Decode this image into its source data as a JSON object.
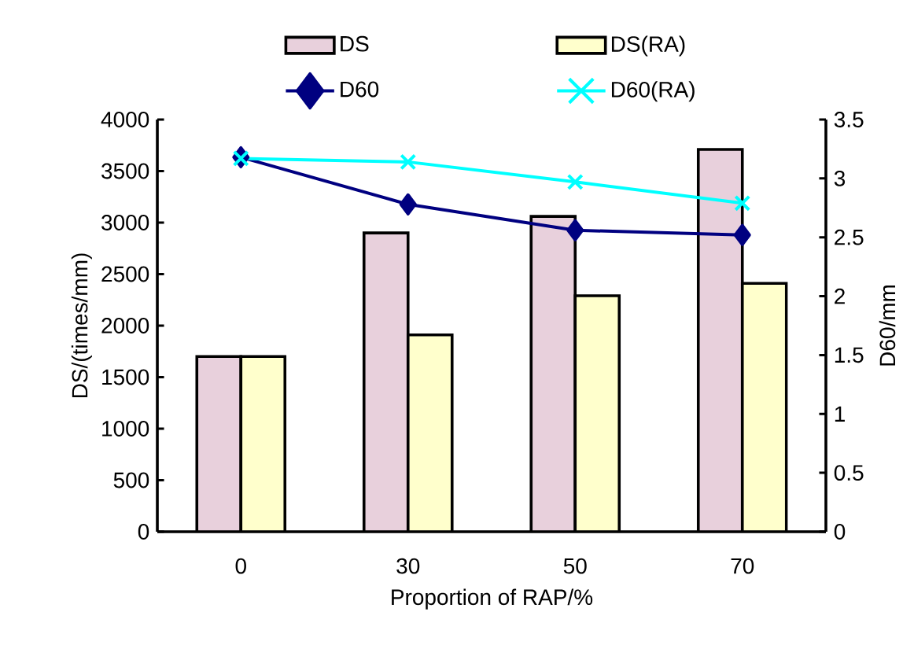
{
  "chart_data": {
    "type": "bar",
    "categories": [
      "0",
      "30",
      "50",
      "70"
    ],
    "xlabel": "Proportion of RAP/%",
    "ylabel": "DS/(times/mm)",
    "y2label": "D60/mm",
    "series": [
      {
        "name": "DS",
        "color": "#e8d0dc",
        "values": [
          1700,
          2900,
          3060,
          3710
        ]
      },
      {
        "name": "DS(RA)",
        "color": "#ffffcc",
        "values": [
          1700,
          1910,
          2290,
          2410
        ]
      },
      {
        "name": "D60",
        "type": "line",
        "axis": "y2",
        "marker": "diamond",
        "color": "#000080",
        "values": [
          3.18,
          2.78,
          2.56,
          2.52
        ]
      },
      {
        "name": "D60(RA)",
        "type": "line",
        "axis": "y2",
        "marker": "cross",
        "color": "#00ffff",
        "values": [
          3.17,
          3.14,
          2.97,
          2.79
        ]
      }
    ],
    "ylim": [
      0,
      4000
    ],
    "yticks": [
      0,
      500,
      1000,
      1500,
      2000,
      2500,
      3000,
      3500,
      4000
    ],
    "y2lim": [
      0,
      3.5
    ],
    "y2ticks": [
      0,
      0.5,
      1,
      1.5,
      2,
      2.5,
      3,
      3.5
    ],
    "grid": false,
    "legend": "top"
  }
}
